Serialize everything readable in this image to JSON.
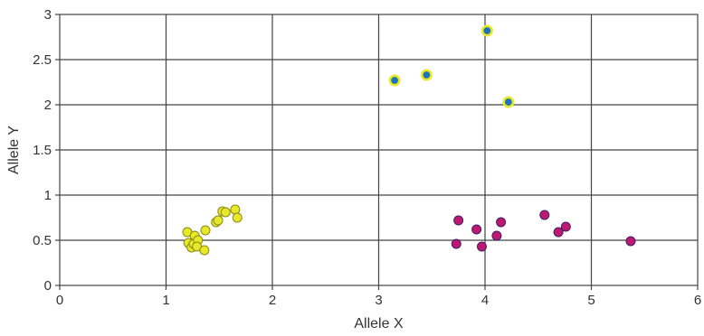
{
  "chart_data": {
    "type": "scatter",
    "title": "",
    "xlabel": "Allele X",
    "ylabel": "Allele Y",
    "xlim": [
      0,
      6
    ],
    "ylim": [
      0,
      3
    ],
    "x_ticks": [
      "0",
      "1",
      "2",
      "3",
      "4",
      "5",
      "6"
    ],
    "y_ticks": [
      "0",
      "0.5",
      "1",
      "1.5",
      "2",
      "2.5",
      "3"
    ],
    "grid": true,
    "legend": "none",
    "series": [
      {
        "color": "#e8e82a",
        "stroke": "#8a8a10",
        "style": "yellow-circle",
        "points": [
          [
            1.2,
            0.59
          ],
          [
            1.27,
            0.55
          ],
          [
            1.37,
            0.61
          ],
          [
            1.47,
            0.7
          ],
          [
            1.49,
            0.72
          ],
          [
            1.53,
            0.82
          ],
          [
            1.56,
            0.81
          ],
          [
            1.65,
            0.84
          ],
          [
            1.67,
            0.75
          ],
          [
            1.21,
            0.47
          ],
          [
            1.24,
            0.42
          ],
          [
            1.26,
            0.46
          ],
          [
            1.3,
            0.5
          ],
          [
            1.29,
            0.43
          ],
          [
            1.36,
            0.39
          ]
        ]
      },
      {
        "color": "#1e73b8",
        "stroke": "#e8e82a",
        "style": "blue-dot-yellow-ring",
        "points": [
          [
            3.15,
            2.27
          ],
          [
            3.45,
            2.33
          ],
          [
            4.02,
            2.82
          ],
          [
            4.22,
            2.03
          ]
        ]
      },
      {
        "color": "#c0186e",
        "stroke": "#3a1f6e",
        "style": "magenta-circle",
        "points": [
          [
            3.73,
            0.46
          ],
          [
            3.75,
            0.72
          ],
          [
            3.92,
            0.62
          ],
          [
            3.97,
            0.43
          ],
          [
            4.11,
            0.55
          ],
          [
            4.15,
            0.7
          ],
          [
            4.56,
            0.78
          ],
          [
            4.69,
            0.59
          ],
          [
            4.76,
            0.65
          ],
          [
            5.37,
            0.49
          ]
        ]
      }
    ]
  }
}
